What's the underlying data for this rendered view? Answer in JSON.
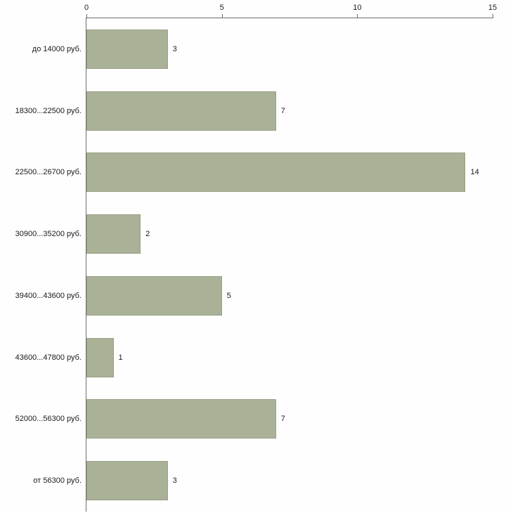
{
  "chart_data": {
    "type": "bar",
    "orientation": "horizontal",
    "title": "",
    "xlabel": "",
    "ylabel": "",
    "xlim": [
      0,
      15
    ],
    "x_ticks": [
      0,
      5,
      10,
      15
    ],
    "grid": false,
    "legend": false,
    "categories": [
      "до 14000 руб.",
      "18300...22500 руб.",
      "22500...26700 руб.",
      "30900...35200 руб.",
      "39400...43600 руб.",
      "43600...47800 руб.",
      "52000...56300 руб.",
      "от 56300 руб."
    ],
    "values": [
      3,
      7,
      14,
      2,
      5,
      1,
      7,
      3
    ],
    "bar_color": "#a9b197",
    "bar_border_color": "#98a084",
    "axis_color": "#6e6e6e",
    "text_color": "#1a1a1a"
  }
}
